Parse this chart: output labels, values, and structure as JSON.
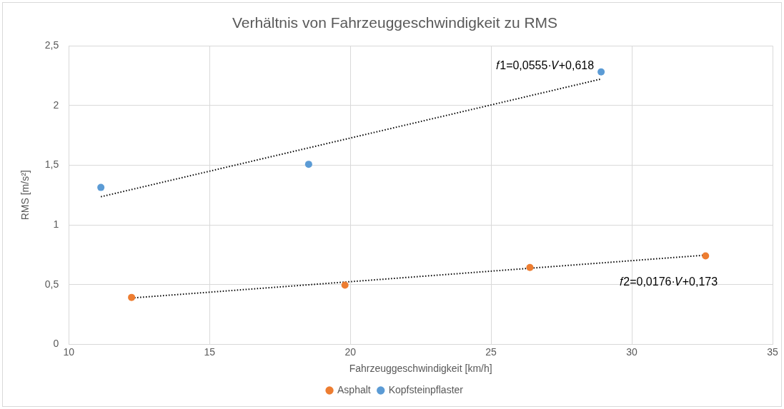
{
  "chart_data": {
    "type": "scatter",
    "title": "Verhältnis von Fahrzeuggeschwindigkeit zu RMS",
    "xlabel": "Fahrzeuggeschwindigkeit [km/h]",
    "ylabel": "RMS [m/s²]",
    "series": [
      {
        "name": "Asphalt",
        "color": "#ed7d31",
        "x": [
          12.23,
          19.81,
          26.38,
          32.62
        ],
        "values": [
          0.393,
          0.496,
          0.644,
          0.741
        ]
      },
      {
        "name": "Kopfsteinpflaster",
        "color": "#5b9bd5",
        "x": [
          11.14,
          18.52,
          28.91
        ],
        "values": [
          1.314,
          1.508,
          2.281
        ]
      },
      {
        "type": "line",
        "color": "#000000",
        "line_style": "dotted",
        "marker": "none",
        "x": [
          11.14,
          28.91
        ],
        "values": [
          1.236,
          2.222
        ]
      },
      {
        "type": "line",
        "color": "#000000",
        "line_style": "dotted",
        "marker": "none",
        "x": [
          12.23,
          32.62
        ],
        "values": [
          0.388,
          0.747
        ]
      }
    ],
    "xlim": [
      10,
      35
    ],
    "xticks": [
      10,
      15,
      20,
      25,
      30,
      35
    ],
    "ylim": [
      0,
      2.5
    ],
    "yticks": [
      0,
      {
        "value": 0.5,
        "label": "0,5"
      },
      1,
      {
        "value": 1.5,
        "label": "1,5"
      },
      2,
      {
        "value": 2.5,
        "label": "2,5"
      }
    ],
    "grid": true,
    "legend": "bottom",
    "marker": "circle",
    "annotations": [
      "𝑓1=0,0555·𝑉+0,618",
      "𝑓2=0,0176·𝑉+0,173"
    ]
  }
}
